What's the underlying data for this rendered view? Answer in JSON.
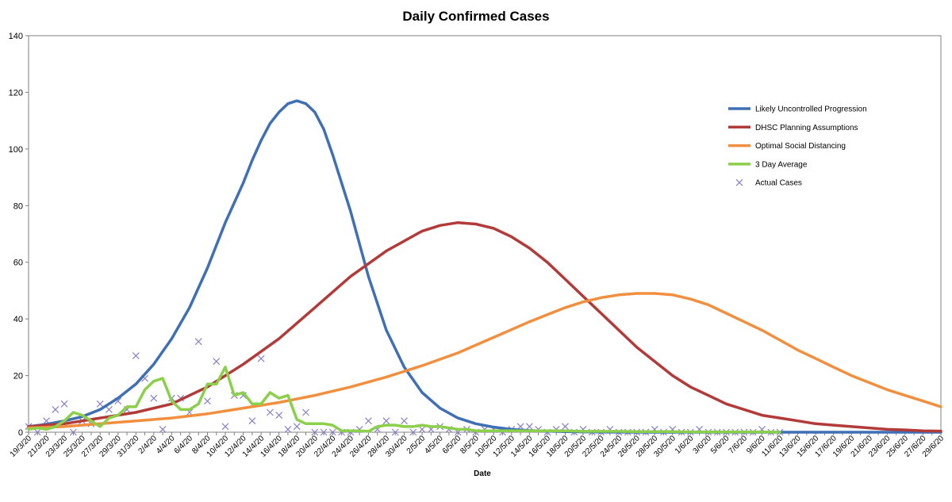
{
  "chart_data": {
    "type": "line",
    "title": "Daily Confirmed Cases",
    "xlabel": "Date",
    "ylabel": "",
    "ylim": [
      0,
      140
    ],
    "y_ticks": [
      0,
      20,
      40,
      60,
      80,
      100,
      120,
      140
    ],
    "x_start_day": 0,
    "x_end_day": 102,
    "x_tick_labels": [
      "19/3/20",
      "21/3/20",
      "23/3/20",
      "25/3/20",
      "27/3/20",
      "29/3/20",
      "31/3/20",
      "2/4/20",
      "4/4/20",
      "6/4/20",
      "8/4/20",
      "10/4/20",
      "12/4/20",
      "14/4/20",
      "16/4/20",
      "18/4/20",
      "20/4/20",
      "22/4/20",
      "24/4/20",
      "26/4/20",
      "28/4/20",
      "30/4/20",
      "2/5/20",
      "4/5/20",
      "6/5/20",
      "8/5/20",
      "10/5/20",
      "12/5/20",
      "14/5/20",
      "16/5/20",
      "18/5/20",
      "20/5/20",
      "22/5/20",
      "24/5/20",
      "26/5/20",
      "28/5/20",
      "30/5/20",
      "1/6/20",
      "3/6/20",
      "5/6/20",
      "7/6/20",
      "9/6/20",
      "11/6/20",
      "13/6/20",
      "15/6/20",
      "17/6/20",
      "19/6/20",
      "21/6/20",
      "23/6/20",
      "25/6/20",
      "27/6/20",
      "29/6/20"
    ],
    "legend_position": "right",
    "grid": {
      "horizontal": false,
      "vertical": false
    },
    "series": [
      {
        "name": "Likely Uncontrolled Progression",
        "color": "#3F6FB4",
        "kind": "line",
        "x": [
          0,
          2,
          4,
          6,
          8,
          10,
          12,
          14,
          16,
          18,
          20,
          22,
          23,
          24,
          25,
          26,
          27,
          28,
          29,
          30,
          31,
          32,
          33,
          34,
          36,
          38,
          40,
          42,
          44,
          46,
          48,
          50,
          52,
          54,
          56,
          58,
          60,
          62,
          64,
          66,
          68,
          70,
          74,
          80,
          90,
          102
        ],
        "y": [
          2,
          2.8,
          4,
          5.5,
          8,
          12,
          17,
          24,
          33,
          44,
          58,
          74,
          81,
          88,
          96,
          103,
          109,
          113,
          116,
          117,
          116,
          113,
          107,
          98,
          78,
          55,
          36,
          23,
          14,
          8.5,
          5,
          3,
          1.8,
          1,
          0.6,
          0.4,
          0.2,
          0.1,
          0.05,
          0.02,
          0,
          0,
          0,
          0,
          0,
          0
        ]
      },
      {
        "name": "DHSC Planning Assumptions",
        "color": "#B23A38",
        "kind": "line",
        "x": [
          0,
          4,
          8,
          12,
          16,
          20,
          24,
          28,
          32,
          36,
          40,
          44,
          46,
          48,
          50,
          52,
          54,
          56,
          58,
          60,
          62,
          64,
          66,
          68,
          70,
          72,
          74,
          76,
          78,
          80,
          82,
          84,
          86,
          88,
          90,
          92,
          94,
          96,
          98,
          100,
          102
        ],
        "y": [
          2,
          3,
          5,
          7,
          10,
          16,
          24,
          33,
          44,
          55,
          64,
          71,
          73,
          74,
          73.5,
          72,
          69,
          65,
          60,
          54,
          48,
          42,
          36,
          30,
          25,
          20,
          16,
          13,
          10,
          8,
          6,
          5,
          4,
          3,
          2.5,
          2,
          1.5,
          1,
          0.8,
          0.5,
          0.4
        ]
      },
      {
        "name": "Optimal Social Distancing",
        "color": "#F28F3F",
        "kind": "line",
        "x": [
          0,
          4,
          8,
          12,
          16,
          20,
          24,
          28,
          32,
          36,
          40,
          44,
          48,
          52,
          56,
          58,
          60,
          62,
          64,
          66,
          68,
          70,
          72,
          74,
          76,
          78,
          80,
          82,
          84,
          86,
          88,
          90,
          92,
          94,
          96,
          98,
          100,
          102
        ],
        "y": [
          1.5,
          2,
          3,
          4,
          5,
          6.5,
          8.5,
          10.5,
          13,
          16,
          19.5,
          23.5,
          28,
          33.5,
          39,
          41.5,
          44,
          46,
          47.5,
          48.5,
          49,
          49,
          48.5,
          47,
          45,
          42,
          39,
          36,
          32.5,
          29,
          26,
          23,
          20,
          17.5,
          15,
          13,
          11,
          9
        ]
      },
      {
        "name": "3 Day Average",
        "color": "#8BCF4A",
        "kind": "line",
        "x": [
          0,
          1,
          2,
          3,
          4,
          5,
          6,
          7,
          8,
          9,
          10,
          11,
          12,
          13,
          14,
          15,
          16,
          17,
          18,
          19,
          20,
          21,
          22,
          23,
          24,
          25,
          26,
          27,
          28,
          29,
          30,
          31,
          32,
          33,
          34,
          35,
          36,
          37,
          38,
          39,
          40,
          41,
          42,
          43,
          44,
          45,
          46,
          47,
          48,
          49,
          50,
          52,
          54,
          56,
          58,
          60,
          62,
          64,
          66,
          68,
          70,
          72,
          74,
          76,
          78,
          80,
          82,
          84
        ],
        "y": [
          1,
          1.5,
          1,
          2,
          4,
          7,
          6,
          4,
          2,
          5,
          6,
          9,
          9,
          15,
          18,
          19,
          11,
          8,
          8,
          10,
          17,
          17,
          23,
          13,
          14,
          10,
          10,
          14,
          12,
          13,
          4.5,
          3,
          3,
          3,
          2.5,
          0.5,
          0.5,
          0.5,
          0.3,
          2,
          2.5,
          2.5,
          2,
          2,
          2.5,
          2,
          2,
          1.5,
          1,
          1,
          0.5,
          0.5,
          0.5,
          0.5,
          0.5,
          0.5,
          0.3,
          0.3,
          0.3,
          0.2,
          0.2,
          0.2,
          0.1,
          0.1,
          0.1,
          0.1,
          0.1,
          0
        ]
      },
      {
        "name": "Actual Cases",
        "color": "#8B7FC9",
        "kind": "scatter",
        "x": [
          0,
          1,
          2,
          3,
          4,
          5,
          6,
          7,
          8,
          9,
          10,
          11,
          12,
          13,
          14,
          15,
          16,
          17,
          18,
          19,
          20,
          21,
          22,
          23,
          24,
          25,
          26,
          27,
          28,
          29,
          30,
          31,
          32,
          33,
          34,
          35,
          36,
          37,
          38,
          39,
          40,
          41,
          42,
          43,
          44,
          45,
          46,
          47,
          48,
          49,
          50,
          51,
          52,
          53,
          54,
          55,
          56,
          57,
          58,
          59,
          60,
          61,
          62,
          63,
          64,
          65,
          66,
          67,
          68,
          69,
          70,
          71,
          72,
          73,
          74,
          75,
          76,
          77,
          78,
          79,
          80,
          81,
          82,
          83,
          84
        ],
        "y": [
          2,
          0,
          4,
          8,
          10,
          0,
          4,
          3,
          10,
          8,
          11,
          8,
          27,
          19,
          12,
          1,
          12,
          12,
          7,
          32,
          11,
          25,
          2,
          13,
          13,
          4,
          26,
          7,
          6,
          1,
          2,
          7,
          0,
          0,
          0,
          0,
          0,
          1,
          4,
          1,
          4,
          0,
          4,
          0,
          1,
          1,
          2,
          1,
          0,
          1,
          0,
          1,
          1,
          0,
          1,
          2,
          2,
          1,
          0,
          1,
          2,
          0,
          1,
          0,
          0,
          1,
          0,
          0,
          0,
          0,
          1,
          0,
          1,
          0,
          0,
          1,
          0,
          0,
          0,
          0,
          0,
          0,
          1,
          0,
          0
        ]
      }
    ]
  }
}
